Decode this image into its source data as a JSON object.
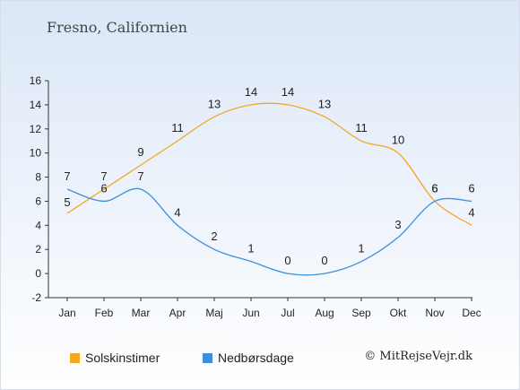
{
  "chart_data": {
    "type": "line",
    "title": "Fresno, Californien",
    "categories": [
      "Jan",
      "Feb",
      "Mar",
      "Apr",
      "Maj",
      "Jun",
      "Jul",
      "Aug",
      "Sep",
      "Okt",
      "Nov",
      "Dec"
    ],
    "ylim": [
      -2,
      16
    ],
    "yticks": [
      -2,
      0,
      2,
      4,
      6,
      8,
      10,
      12,
      14,
      16
    ],
    "series": [
      {
        "name": "Solskinstimer",
        "color": "#f5a623",
        "values": [
          5,
          7,
          9,
          11,
          13,
          14,
          14,
          13,
          11,
          10,
          6,
          4
        ]
      },
      {
        "name": "Nedbørsdage",
        "color": "#3b8fdf",
        "values": [
          7,
          6,
          7,
          4,
          2,
          1,
          0,
          0,
          1,
          3,
          6,
          6
        ]
      }
    ],
    "legend_position": "bottom-left",
    "grid": false
  },
  "credit": "© MitRejseVejr.dk"
}
